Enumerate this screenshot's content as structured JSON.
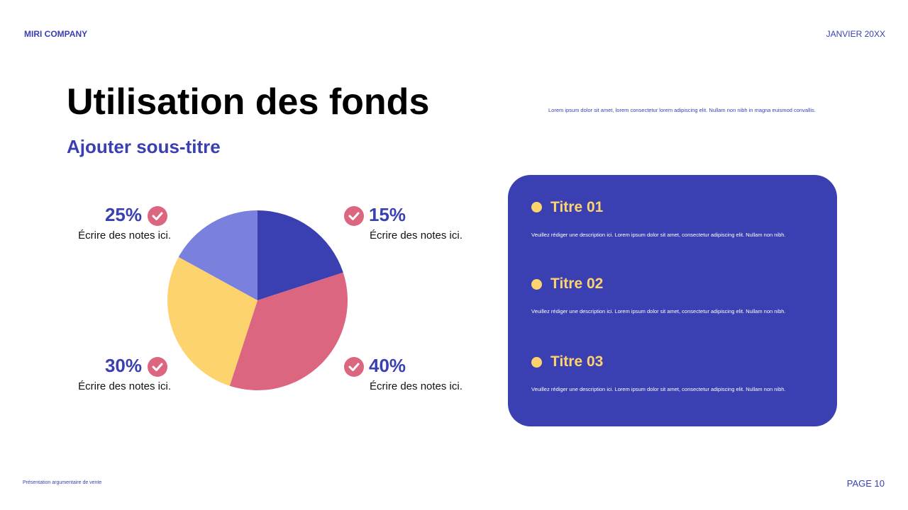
{
  "header": {
    "company": "MIRI COMPANY",
    "date": "JANVIER 20XX"
  },
  "title": "Utilisation des fonds",
  "subtitle": "Ajouter sous-titre",
  "intro": "Lorem ipsum dolor sit amet, lorem consectetur lorem adipiscing elit. Nullam non nibh in magna euismod convallis.",
  "chart_data": {
    "type": "pie",
    "values": [
      20,
      35,
      28,
      17
    ],
    "colors": [
      "#3a40b1",
      "#dc6680",
      "#fdd36e",
      "#7a80dd"
    ]
  },
  "callouts": [
    {
      "value": "25%",
      "note": "Écrire des notes ici."
    },
    {
      "value": "15%",
      "note": "Écrire des notes ici."
    },
    {
      "value": "30%",
      "note": "Écrire des notes ici."
    },
    {
      "value": "40%",
      "note": "Écrire des notes ici."
    }
  ],
  "panel": {
    "items": [
      {
        "title": "Titre 01",
        "text": "Veuillez rédiger une description ici. Lorem ipsum dolor sit amet, consectetur adipiscing elit. Nullam non nibh."
      },
      {
        "title": "Titre 02",
        "text": "Veuillez rédiger une description ici. Lorem ipsum dolor sit amet, consectetur adipiscing elit. Nullam non nibh."
      },
      {
        "title": "Titre 03",
        "text": "Veuillez rédiger une description ici. Lorem ipsum dolor sit amet, consectetur adipiscing elit. Nullam non nibh."
      }
    ]
  },
  "footer": {
    "left": "Présentation argumentaire de vente",
    "page": "PAGE 10"
  }
}
